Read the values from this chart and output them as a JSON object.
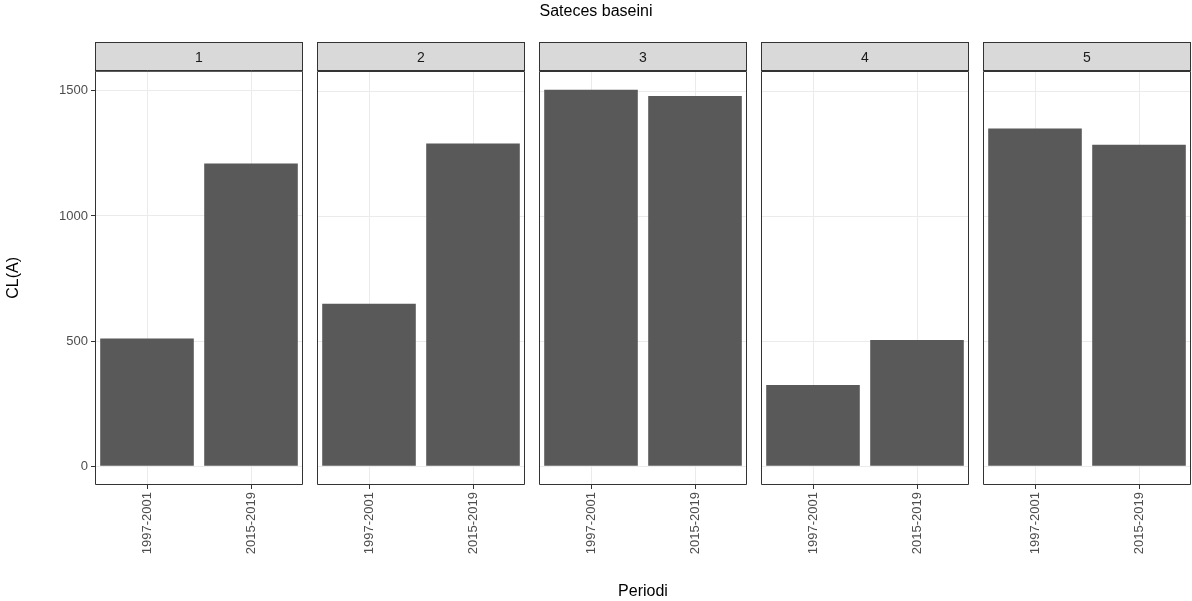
{
  "chart_data": [
    {
      "type": "bar",
      "title": "1",
      "ylabel": "CL(A)",
      "categories": [
        "1997-2001",
        "2015-2019"
      ],
      "values": [
        510,
        1210
      ],
      "color": "#595959",
      "ylim": [
        -75,
        1580
      ],
      "yticks": [
        0,
        500,
        1000,
        1500
      ],
      "grid": true
    },
    {
      "type": "bar",
      "title": "2",
      "categories": [
        "1997-2001",
        "2015-2019"
      ],
      "values": [
        650,
        1290
      ],
      "color": "#595959",
      "ylim": [
        -75,
        1580
      ],
      "yticks": [
        0,
        500,
        1000,
        1500
      ],
      "grid": true,
      "tick_labels": "x"
    },
    {
      "type": "bar",
      "title": "3",
      "xlabel": "Periodi",
      "annotations": [
        "Sateces baseini"
      ],
      "categories": [
        "1997-2001",
        "2015-2019"
      ],
      "values": [
        1505,
        1480
      ],
      "color": "#595959",
      "ylim": [
        -75,
        1580
      ],
      "yticks": [
        0,
        500,
        1000,
        1500
      ],
      "grid": true,
      "tick_labels": "x"
    },
    {
      "type": "bar",
      "title": "4",
      "categories": [
        "1997-2001",
        "2015-2019"
      ],
      "values": [
        325,
        505
      ],
      "color": "#595959",
      "ylim": [
        -75,
        1580
      ],
      "yticks": [
        0,
        500,
        1000,
        1500
      ],
      "grid": true,
      "tick_labels": "x"
    },
    {
      "type": "bar",
      "title": "5",
      "categories": [
        "1997-2001",
        "2015-2019"
      ],
      "values": [
        1350,
        1285
      ],
      "color": "#595959",
      "ylim": [
        -75,
        1580
      ],
      "yticks": [
        0,
        500,
        1000,
        1500
      ],
      "grid": true,
      "tick_labels": "x"
    }
  ]
}
